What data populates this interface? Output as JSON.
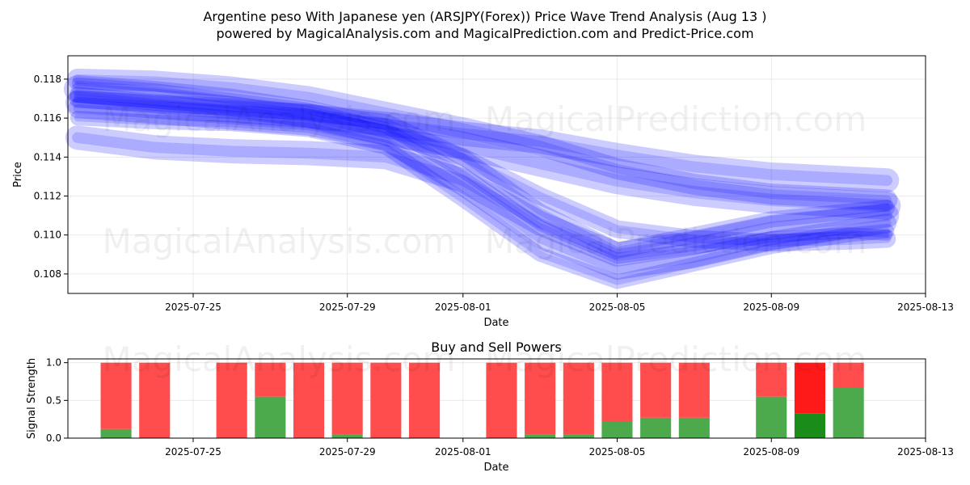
{
  "figure": {
    "title_line1": "Argentine peso With Japanese yen (ARSJPY(Forex)) Price Wave Trend Analysis (Aug 13 )",
    "title_line2": "powered by MagicalAnalysis.com and MagicalPrediction.com and Predict-Price.com",
    "watermark_analysis": "MagicalAnalysis.com",
    "watermark_prediction": "MagicalPrediction.com"
  },
  "chart_data": [
    {
      "type": "line",
      "title": "",
      "xlabel": "Date",
      "ylabel": "Price",
      "xlim": [
        "2025-07-21 18:00",
        "2025-08-13"
      ],
      "ylim": [
        0.107,
        0.1192
      ],
      "grid": true,
      "color": "#0000ff",
      "x_ticks": [
        "2025-07-25",
        "2025-07-29",
        "2025-08-01",
        "2025-08-05",
        "2025-08-09",
        "2025-08-13"
      ],
      "y_ticks": [
        0.108,
        0.11,
        0.112,
        0.114,
        0.116,
        0.118
      ],
      "x_ticks_text": [
        "2025-07-25",
        "2025-07-29",
        "2025-08-01",
        "2025-08-05",
        "2025-08-09",
        "2025-08-13"
      ],
      "y_ticks_text": [
        "0.108",
        "0.110",
        "0.112",
        "0.114",
        "0.116",
        "0.118"
      ],
      "series": [
        {
          "x": [
            "2025-07-22",
            "2025-07-24",
            "2025-07-26",
            "2025-07-28",
            "2025-07-30",
            "2025-08-01",
            "2025-08-03",
            "2025-08-05",
            "2025-08-07",
            "2025-08-09",
            "2025-08-11",
            "2025-08-12"
          ],
          "values": [
            0.1175,
            0.1172,
            0.1168,
            0.1162,
            0.1153,
            0.1146,
            0.1137,
            0.1128,
            0.1122,
            0.1118,
            0.1116,
            0.1115
          ]
        },
        {
          "x": [
            "2025-07-22",
            "2025-07-24",
            "2025-07-26",
            "2025-07-28",
            "2025-07-30",
            "2025-08-01",
            "2025-08-03",
            "2025-08-05",
            "2025-08-07",
            "2025-08-09",
            "2025-08-11",
            "2025-08-12"
          ],
          "values": [
            0.118,
            0.1179,
            0.1176,
            0.1171,
            0.1163,
            0.1155,
            0.1146,
            0.1134,
            0.1126,
            0.1121,
            0.1119,
            0.1118
          ]
        },
        {
          "x": [
            "2025-07-22",
            "2025-07-24",
            "2025-07-26",
            "2025-07-28",
            "2025-07-30",
            "2025-08-01",
            "2025-08-03",
            "2025-08-05",
            "2025-08-07",
            "2025-08-09",
            "2025-08-11",
            "2025-08-12"
          ],
          "values": [
            0.1168,
            0.1166,
            0.1164,
            0.1161,
            0.1157,
            0.1152,
            0.1148,
            0.1141,
            0.1135,
            0.1131,
            0.1129,
            0.1128
          ]
        },
        {
          "x": [
            "2025-07-22",
            "2025-07-24",
            "2025-07-26",
            "2025-07-28",
            "2025-07-30",
            "2025-08-01",
            "2025-08-03",
            "2025-08-05",
            "2025-08-07",
            "2025-08-09",
            "2025-08-11",
            "2025-08-12"
          ],
          "values": [
            0.1172,
            0.1168,
            0.1165,
            0.1163,
            0.1158,
            0.114,
            0.1112,
            0.1092,
            0.11,
            0.1108,
            0.1112,
            0.1114
          ]
        },
        {
          "x": [
            "2025-07-22",
            "2025-07-24",
            "2025-07-26",
            "2025-07-28",
            "2025-07-30",
            "2025-08-01",
            "2025-08-03",
            "2025-08-05",
            "2025-08-07",
            "2025-08-09",
            "2025-08-11",
            "2025-08-12"
          ],
          "values": [
            0.1165,
            0.1162,
            0.1159,
            0.1156,
            0.1148,
            0.1125,
            0.1098,
            0.1082,
            0.1088,
            0.1097,
            0.1103,
            0.1106
          ]
        },
        {
          "x": [
            "2025-07-22",
            "2025-07-24",
            "2025-07-26",
            "2025-07-28",
            "2025-07-30",
            "2025-08-01",
            "2025-08-03",
            "2025-08-05",
            "2025-08-07",
            "2025-08-09",
            "2025-08-11",
            "2025-08-12"
          ],
          "values": [
            0.116,
            0.1158,
            0.1157,
            0.1154,
            0.1145,
            0.1118,
            0.109,
            0.1076,
            0.1085,
            0.1094,
            0.11,
            0.1102
          ]
        },
        {
          "x": [
            "2025-07-22",
            "2025-07-24",
            "2025-07-26",
            "2025-07-28",
            "2025-07-30",
            "2025-08-01",
            "2025-08-03",
            "2025-08-05",
            "2025-08-07",
            "2025-08-09",
            "2025-08-11",
            "2025-08-12"
          ],
          "values": [
            0.115,
            0.1145,
            0.1143,
            0.1142,
            0.114,
            0.1128,
            0.1106,
            0.109,
            0.1096,
            0.1104,
            0.1108,
            0.111
          ]
        },
        {
          "x": [
            "2025-07-22",
            "2025-07-24",
            "2025-07-26",
            "2025-07-28",
            "2025-07-30",
            "2025-08-01",
            "2025-08-03",
            "2025-08-05",
            "2025-08-07",
            "2025-08-09",
            "2025-08-11",
            "2025-08-12"
          ],
          "values": [
            0.1178,
            0.1175,
            0.117,
            0.1165,
            0.1155,
            0.1132,
            0.1105,
            0.1088,
            0.1093,
            0.1099,
            0.1101,
            0.11
          ]
        },
        {
          "x": [
            "2025-07-22",
            "2025-07-24",
            "2025-07-26",
            "2025-07-28",
            "2025-07-30",
            "2025-08-01",
            "2025-08-03",
            "2025-08-05",
            "2025-08-07",
            "2025-08-09",
            "2025-08-11",
            "2025-08-12"
          ],
          "values": [
            0.117,
            0.1167,
            0.1164,
            0.116,
            0.1152,
            0.114,
            0.112,
            0.1103,
            0.1098,
            0.1096,
            0.1097,
            0.1098
          ]
        }
      ]
    },
    {
      "type": "bar",
      "title": "Buy and Sell Powers",
      "xlabel": "Date",
      "ylabel": "Signal Strength",
      "ylim": [
        0,
        1.05
      ],
      "grid": true,
      "x_ticks": [
        "2025-07-25",
        "2025-07-29",
        "2025-08-01",
        "2025-08-05",
        "2025-08-09",
        "2025-08-13"
      ],
      "y_ticks": [
        0.0,
        0.5,
        1.0
      ],
      "y_ticks_text": [
        "0.0",
        "0.5",
        "1.0"
      ],
      "categories": [
        "2025-07-23",
        "2025-07-24",
        "2025-07-26",
        "2025-07-27",
        "2025-07-28",
        "2025-07-29",
        "2025-07-30",
        "2025-07-31",
        "2025-08-02",
        "2025-08-03",
        "2025-08-04",
        "2025-08-05",
        "2025-08-06",
        "2025-08-07",
        "2025-08-09",
        "2025-08-10",
        "2025-08-11"
      ],
      "series": [
        {
          "values": [
            0.12,
            0.0,
            0.0,
            0.55,
            0.0,
            0.05,
            0.0,
            0.0,
            0.0,
            0.05,
            0.05,
            0.22,
            0.27,
            0.27,
            0.55,
            0.33,
            0.67
          ],
          "color": "#4caa4c",
          "highlight_color": "#1a8c1a"
        },
        {
          "values": [
            0.88,
            1.0,
            1.0,
            0.45,
            1.0,
            0.95,
            1.0,
            1.0,
            1.0,
            0.95,
            0.95,
            0.78,
            0.73,
            0.73,
            0.45,
            0.67,
            0.33
          ],
          "color": "#ff4c4c",
          "highlight_color": "#ff1a1a"
        }
      ],
      "highlight_index": 15
    }
  ]
}
